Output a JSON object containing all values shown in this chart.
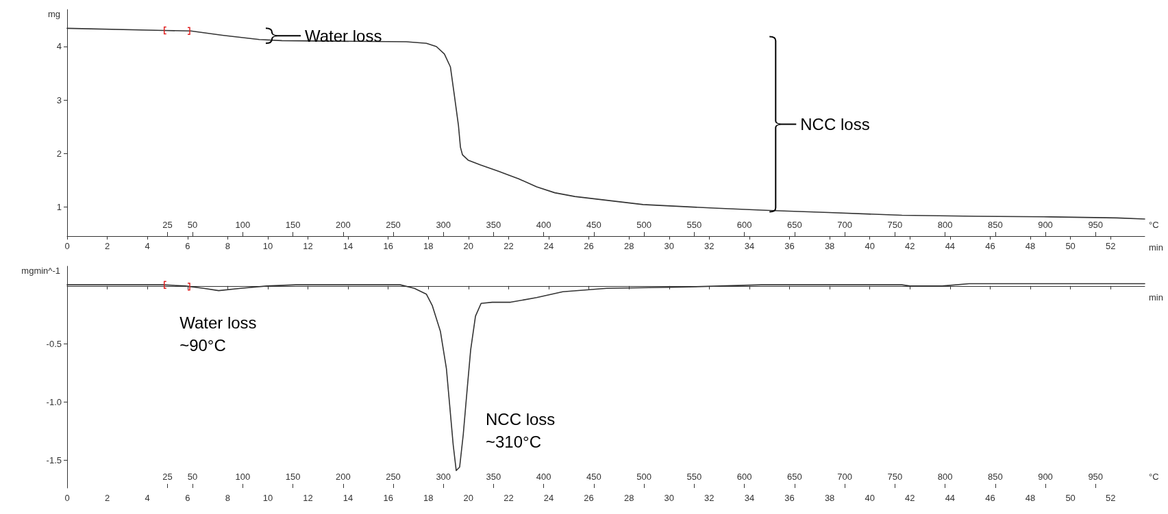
{
  "chart_data": [
    {
      "type": "line",
      "ylabel": "mg",
      "xlabel": "min",
      "x2label": "°C",
      "color": "#333333",
      "x": [
        0,
        4.79,
        6.17,
        7.73,
        9.58,
        10.7,
        13.3,
        16.9,
        17.9,
        18.4,
        18.8,
        19.1,
        19.3,
        19.5,
        19.6,
        19.7,
        19.98,
        20.6,
        21.5,
        22.5,
        23.4,
        24.3,
        25.3,
        28.7,
        32.4,
        35.0,
        37.95,
        41.6,
        45.3,
        49.0,
        52.3,
        53.7
      ],
      "values": [
        4.34,
        4.3,
        4.29,
        4.21,
        4.13,
        4.11,
        4.1,
        4.09,
        4.06,
        4.0,
        3.86,
        3.62,
        3.08,
        2.53,
        2.12,
        1.98,
        1.88,
        1.79,
        1.67,
        1.53,
        1.38,
        1.27,
        1.2,
        1.05,
        0.98,
        0.94,
        0.9,
        0.85,
        0.83,
        0.82,
        0.8,
        0.78
      ],
      "xlim": [
        0,
        53.7
      ],
      "xticks": [
        0,
        2,
        4,
        6,
        8,
        10,
        12,
        14,
        16,
        18,
        20,
        22,
        24,
        26,
        28,
        30,
        32,
        34,
        36,
        38,
        40,
        42,
        44,
        46,
        48,
        50,
        52
      ],
      "x2lim": [
        -75,
        999
      ],
      "x2ticks": [
        25,
        50,
        100,
        150,
        200,
        250,
        300,
        350,
        400,
        450,
        500,
        550,
        600,
        650,
        700,
        750,
        800,
        850,
        900,
        950
      ],
      "ylim": [
        0.46,
        4.69
      ],
      "yticks": [
        1,
        2,
        3,
        4
      ],
      "annotations": [
        {
          "text": "Water loss",
          "x": 9.9,
          "y": 4.2
        },
        "NCC loss"
      ]
    },
    {
      "type": "line",
      "ylabel": "mgmin^-1",
      "xlabel": "min",
      "x2label": "°C",
      "color": "#333333",
      "x": [
        0,
        4.79,
        5.9,
        6.8,
        7.55,
        8.66,
        9.94,
        11.4,
        15.1,
        16.6,
        17.3,
        17.9,
        18.2,
        18.6,
        18.9,
        19.06,
        19.24,
        19.39,
        19.56,
        19.74,
        19.93,
        20.11,
        20.35,
        20.63,
        21.18,
        22.1,
        23.4,
        24.7,
        26.9,
        30.6,
        34.6,
        41.6,
        42.0,
        43.6,
        44.95,
        53.7
      ],
      "values": [
        0.01,
        0.01,
        0.0,
        -0.02,
        -0.04,
        -0.02,
        0.0,
        0.01,
        0.01,
        0.01,
        -0.02,
        -0.07,
        -0.17,
        -0.39,
        -0.71,
        -1.02,
        -1.37,
        -1.59,
        -1.56,
        -1.28,
        -0.9,
        -0.55,
        -0.26,
        -0.15,
        -0.14,
        -0.14,
        -0.1,
        -0.05,
        -0.02,
        -0.01,
        0.01,
        0.01,
        0.0,
        0.0,
        0.02,
        0.02
      ],
      "xlim": [
        0,
        53.7
      ],
      "xticks": [
        0,
        2,
        4,
        6,
        8,
        10,
        12,
        14,
        16,
        18,
        20,
        22,
        24,
        26,
        28,
        30,
        32,
        34,
        36,
        38,
        40,
        42,
        44,
        46,
        48,
        50,
        52
      ],
      "x2lim": [
        -75,
        999
      ],
      "x2ticks": [
        25,
        50,
        100,
        150,
        200,
        250,
        300,
        350,
        400,
        450,
        500,
        550,
        600,
        650,
        700,
        750,
        800,
        850,
        900,
        950
      ],
      "ylim": [
        -1.74,
        0.17
      ],
      "yticks": [
        {
          "value": -1.5,
          "label": "-1.5"
        },
        {
          "value": -1,
          "label": "-1.0"
        },
        {
          "value": -0.5,
          "label": "-0.5"
        }
      ],
      "annotations": [
        {
          "text": "Water loss\n~90°C",
          "x": 7.55,
          "y": -0.04
        },
        {
          "text": "NCC loss\n~310°C",
          "x": 19.39,
          "y": -1.59
        }
      ]
    }
  ]
}
